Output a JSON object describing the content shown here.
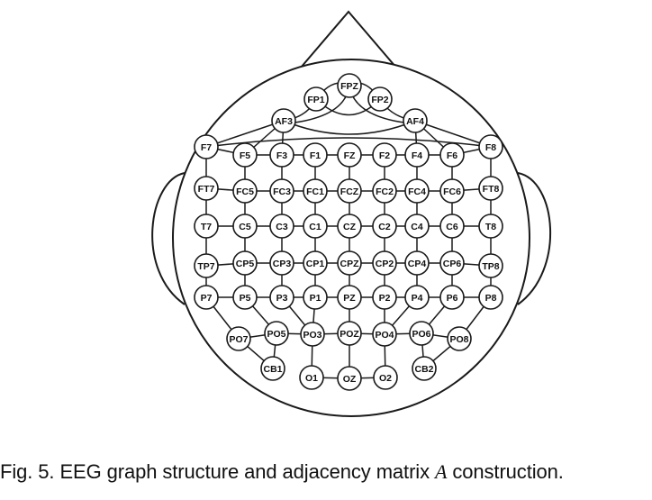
{
  "caption": {
    "prefix": "Fig. 5. EEG graph structure and adjacency matrix ",
    "variable": "A",
    "suffix": " construction."
  },
  "diagram": {
    "type": "eeg-electrode-graph",
    "rows": [
      [
        "FPZ"
      ],
      [
        "FP1",
        "FP2"
      ],
      [
        "AF3",
        "AF4"
      ],
      [
        "F7",
        "F5",
        "F3",
        "F1",
        "FZ",
        "F2",
        "F4",
        "F6",
        "F8"
      ],
      [
        "FT7",
        "FC5",
        "FC3",
        "FC1",
        "FCZ",
        "FC2",
        "FC4",
        "FC6",
        "FT8"
      ],
      [
        "T7",
        "C5",
        "C3",
        "C1",
        "CZ",
        "C2",
        "C4",
        "C6",
        "T8"
      ],
      [
        "TP7",
        "CP5",
        "CP3",
        "CP1",
        "CPZ",
        "CP2",
        "CP4",
        "CP6",
        "TP8"
      ],
      [
        "P7",
        "P5",
        "P3",
        "P1",
        "PZ",
        "P2",
        "P4",
        "P6",
        "P8"
      ],
      [
        "PO7",
        "PO5",
        "PO3",
        "POZ",
        "PO4",
        "PO6",
        "PO8"
      ],
      [
        "CB1",
        "O1",
        "OZ",
        "O2",
        "CB2"
      ]
    ]
  }
}
